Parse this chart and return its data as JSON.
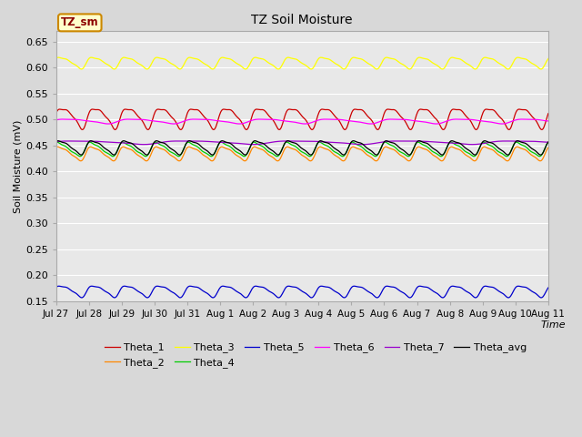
{
  "title": "TZ Soil Moisture",
  "xlabel": "Time",
  "ylabel": "Soil Moisture (mV)",
  "ylim": [
    0.15,
    0.67
  ],
  "yticks": [
    0.15,
    0.2,
    0.25,
    0.3,
    0.35,
    0.4,
    0.45,
    0.5,
    0.55,
    0.6,
    0.65
  ],
  "background_color": "#d8d8d8",
  "plot_bg_color": "#e8e8e8",
  "legend_box_label": "TZ_sm",
  "series": [
    {
      "name": "Theta_1",
      "color": "#cc0000",
      "base": 0.505,
      "amp": 0.018,
      "freq_per_day": 1.0,
      "phase": 0.0
    },
    {
      "name": "Theta_2",
      "color": "#ff8800",
      "base": 0.435,
      "amp": 0.012,
      "freq_per_day": 1.0,
      "phase": 0.5
    },
    {
      "name": "Theta_3",
      "color": "#ffff00",
      "base": 0.61,
      "amp": 0.01,
      "freq_per_day": 1.0,
      "phase": 0.3
    },
    {
      "name": "Theta_4",
      "color": "#00cc00",
      "base": 0.443,
      "amp": 0.012,
      "freq_per_day": 1.0,
      "phase": 0.7
    },
    {
      "name": "Theta_5",
      "color": "#0000cc",
      "base": 0.17,
      "amp": 0.01,
      "freq_per_day": 1.0,
      "phase": 0.2
    },
    {
      "name": "Theta_6",
      "color": "#ff00ff",
      "base": 0.497,
      "amp": 0.004,
      "freq_per_day": 0.5,
      "phase": 0.1
    },
    {
      "name": "Theta_7",
      "color": "#9900cc",
      "base": 0.456,
      "amp": 0.003,
      "freq_per_day": 0.3,
      "phase": 0.0
    },
    {
      "name": "Theta_avg",
      "color": "#000000",
      "base": 0.447,
      "amp": 0.012,
      "freq_per_day": 1.0,
      "phase": 0.4
    }
  ],
  "x_tick_labels": [
    "Jul 27",
    "Jul 28",
    "Jul 29",
    "Jul 30",
    "Jul 31",
    "Aug 1",
    "Aug 2",
    "Aug 3",
    "Aug 4",
    "Aug 5",
    "Aug 6",
    "Aug 7",
    "Aug 8",
    "Aug 9",
    "Aug 10",
    "Aug 11"
  ],
  "n_points": 800,
  "days": 15
}
